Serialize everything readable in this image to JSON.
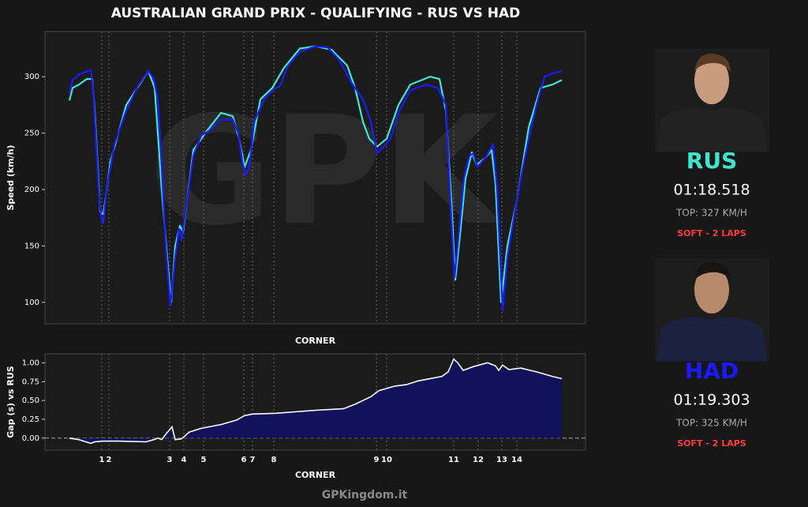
{
  "title": "AUSTRALIAN GRAND PRIX - QUALIFYING - RUS VS HAD",
  "watermark": "GPK",
  "footer": "GPKingdom.it",
  "chart_data": [
    {
      "type": "line",
      "y_label": "Speed (km/h)",
      "x_label": "CORNER",
      "xlim": [
        -31,
        654
      ],
      "ylim": [
        81,
        340
      ],
      "yticks": [
        100,
        150,
        200,
        250,
        300
      ],
      "xticks": [
        41,
        50,
        127,
        145,
        170,
        221,
        232,
        259,
        389,
        402,
        487,
        518,
        548,
        567
      ],
      "series": [
        {
          "name": "RUS",
          "color": "#3ee6cf",
          "x": [
            0,
            4,
            12,
            22,
            29,
            32,
            39,
            43,
            52,
            72,
            100,
            108,
            117,
            125,
            129,
            134,
            140,
            144,
            157,
            172,
            192,
            207,
            215,
            222,
            230,
            242,
            257,
            272,
            292,
            312,
            332,
            352,
            362,
            372,
            380,
            390,
            402,
            417,
            432,
            457,
            469,
            477,
            484,
            489,
            495,
            502,
            510,
            516,
            527,
            535,
            540,
            547,
            555,
            567,
            582,
            597,
            612,
            624
          ],
          "values": [
            279,
            290,
            293,
            298,
            298,
            270,
            180,
            178,
            225,
            275,
            305,
            290,
            200,
            130,
            100,
            150,
            168,
            162,
            235,
            250,
            268,
            265,
            245,
            220,
            235,
            280,
            290,
            308,
            325,
            327,
            324,
            310,
            290,
            260,
            245,
            238,
            245,
            275,
            293,
            300,
            298,
            270,
            190,
            120,
            160,
            210,
            233,
            222,
            228,
            235,
            205,
            100,
            150,
            190,
            255,
            290,
            293,
            297
          ]
        },
        {
          "name": "HAD",
          "color": "#1a1aff",
          "x": [
            0,
            4,
            12,
            27,
            30,
            37,
            40,
            43,
            47,
            57,
            72,
            87,
            100,
            107,
            112,
            117,
            122,
            128,
            134,
            139,
            142,
            147,
            157,
            167,
            177,
            192,
            207,
            214,
            219,
            223,
            228,
            234,
            247,
            257,
            267,
            277,
            292,
            312,
            327,
            342,
            357,
            372,
            382,
            390,
            397,
            407,
            417,
            432,
            452,
            467,
            477,
            482,
            488,
            494,
            500,
            507,
            512,
            517,
            527,
            537,
            542,
            549,
            555,
            562,
            572,
            582,
            592,
            602,
            612,
            624
          ],
          "values": [
            285,
            297,
            302,
            306,
            290,
            200,
            175,
            170,
            200,
            240,
            270,
            292,
            305,
            298,
            280,
            220,
            150,
            97,
            140,
            165,
            155,
            180,
            230,
            248,
            252,
            262,
            262,
            250,
            225,
            213,
            220,
            260,
            280,
            288,
            292,
            310,
            322,
            327,
            326,
            315,
            295,
            280,
            260,
            232,
            237,
            245,
            268,
            288,
            293,
            290,
            275,
            200,
            122,
            165,
            210,
            230,
            232,
            220,
            228,
            240,
            200,
            93,
            140,
            170,
            210,
            245,
            275,
            300,
            303,
            305
          ]
        }
      ]
    },
    {
      "type": "area",
      "y_label": "Gap (s) vs RUS",
      "x_label": "CORNER",
      "xlim": [
        -31,
        654
      ],
      "ylim": [
        -0.16,
        1.12
      ],
      "yticks": [
        {
          "value": 0,
          "label": "0.00"
        },
        {
          "value": 0.25,
          "label": "0.25"
        },
        {
          "value": 0.5,
          "label": "0.50"
        },
        {
          "value": 0.75,
          "label": "0.75"
        },
        {
          "value": 1,
          "label": "1.00"
        }
      ],
      "xticks": [
        {
          "value": 41,
          "label": "1"
        },
        {
          "value": 50,
          "label": "2"
        },
        {
          "value": 127,
          "label": "3"
        },
        {
          "value": 145,
          "label": "4"
        },
        {
          "value": 170,
          "label": "5"
        },
        {
          "value": 221,
          "label": "6"
        },
        {
          "value": 232,
          "label": "7"
        },
        {
          "value": 259,
          "label": "8"
        },
        {
          "value": 389,
          "label": "9"
        },
        {
          "value": 402,
          "label": "10"
        },
        {
          "value": 487,
          "label": "11"
        },
        {
          "value": 518,
          "label": "12"
        },
        {
          "value": 548,
          "label": "13"
        },
        {
          "value": 567,
          "label": "14"
        }
      ],
      "color": "#ffffff",
      "fill": "#12125c",
      "zero_line": true,
      "x": [
        0,
        12,
        27,
        32,
        42,
        62,
        97,
        107,
        112,
        117,
        122,
        130,
        134,
        142,
        152,
        167,
        192,
        212,
        222,
        232,
        262,
        312,
        347,
        362,
        382,
        392,
        412,
        427,
        442,
        472,
        480,
        487,
        492,
        499,
        512,
        530,
        540,
        544,
        549,
        557,
        572,
        592,
        612,
        624
      ],
      "values": [
        0,
        -0.02,
        -0.07,
        -0.05,
        -0.04,
        -0.04,
        -0.05,
        -0.02,
        0,
        -0.02,
        0.05,
        0.15,
        -0.02,
        -0.01,
        0.08,
        0.13,
        0.18,
        0.24,
        0.3,
        0.32,
        0.33,
        0.37,
        0.39,
        0.45,
        0.55,
        0.63,
        0.69,
        0.71,
        0.76,
        0.82,
        0.88,
        1.05,
        1.0,
        0.9,
        0.95,
        1.0,
        0.96,
        0.9,
        0.97,
        0.91,
        0.93,
        0.88,
        0.82,
        0.79
      ]
    }
  ],
  "drivers": [
    {
      "code": "RUS",
      "color": "#3ee6cf",
      "time": "01:18.518",
      "top": "TOP: 327 KM/H",
      "tyre": "SOFT - 2 LAPS"
    },
    {
      "code": "HAD",
      "color": "#1a1aff",
      "time": "01:19.303",
      "top": "TOP: 325 KM/H",
      "tyre": "SOFT - 2 LAPS"
    }
  ]
}
